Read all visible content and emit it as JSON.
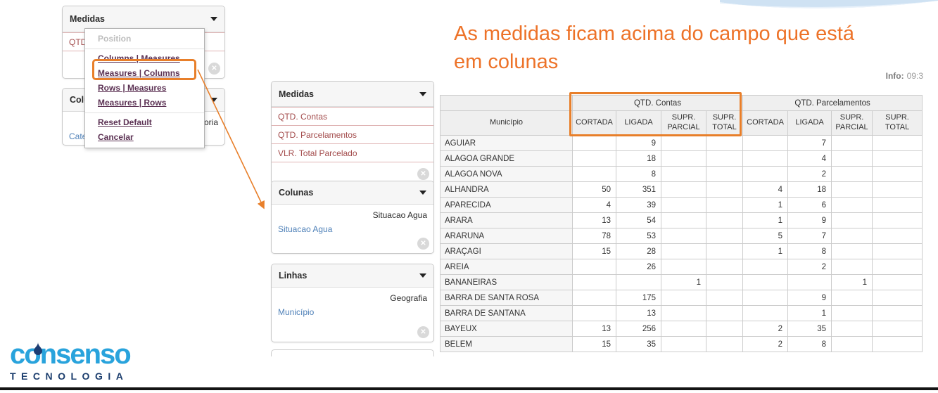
{
  "colors": {
    "accent_orange": "#e87f2a",
    "measure_red": "#a34c4c",
    "field_blue": "#4f81b8",
    "logo_blue": "#29a3dc",
    "logo_navy": "#1c3e6e"
  },
  "heading": {
    "lines": [
      "As medidas ficam acima do campo que está",
      "em colunas"
    ]
  },
  "info": {
    "label": "Info:",
    "value": "09:3"
  },
  "context_menu": {
    "items": [
      {
        "label": "Position",
        "disabled": true
      },
      {
        "label": "Columns | Measures",
        "separator_before": true
      },
      {
        "label": "Measures | Columns",
        "highlighted": true
      },
      {
        "label": "Rows | Measures"
      },
      {
        "label": "Measures | Rows"
      },
      {
        "label": "Reset Default",
        "separator_before": true
      },
      {
        "label": "Cancelar"
      }
    ]
  },
  "back_panels": {
    "medidas": {
      "title": "Medidas",
      "items": [
        "QTD. Contas"
      ]
    },
    "colunas": {
      "title": "Colunas",
      "group": "Categoria",
      "field": "Categoria"
    }
  },
  "panels": {
    "medidas": {
      "title": "Medidas",
      "items": [
        "QTD. Contas",
        "QTD. Parcelamentos",
        "VLR. Total Parcelado"
      ]
    },
    "colunas": {
      "title": "Colunas",
      "group": "Situacao Agua",
      "field": "Situacao Agua"
    },
    "linhas": {
      "title": "Linhas",
      "group": "Geografia",
      "field": "Município"
    }
  },
  "logo": {
    "name": "consenso",
    "subtitle": "TECNOLOGIA"
  },
  "chart_data": {
    "type": "table",
    "row_header": "Município",
    "groups": [
      {
        "label": "QTD. Contas",
        "span": 4
      },
      {
        "label": "QTD. Parcelamentos",
        "span": 4
      }
    ],
    "sub_headers": [
      "CORTADA",
      "LIGADA",
      "SUPR. PARCIAL",
      "SUPR. TOTAL",
      "CORTADA",
      "LIGADA",
      "SUPR. PARCIAL",
      "SUPR. TOTAL"
    ],
    "rows": [
      {
        "name": "AGUIAR",
        "values": [
          "",
          "9",
          "",
          "",
          "",
          "7",
          "",
          ""
        ]
      },
      {
        "name": "ALAGOA GRANDE",
        "values": [
          "",
          "18",
          "",
          "",
          "",
          "4",
          "",
          ""
        ]
      },
      {
        "name": "ALAGOA NOVA",
        "values": [
          "",
          "8",
          "",
          "",
          "",
          "2",
          "",
          ""
        ]
      },
      {
        "name": "ALHANDRA",
        "values": [
          "50",
          "351",
          "",
          "",
          "4",
          "18",
          "",
          ""
        ]
      },
      {
        "name": "APARECIDA",
        "values": [
          "4",
          "39",
          "",
          "",
          "1",
          "6",
          "",
          ""
        ]
      },
      {
        "name": "ARARA",
        "values": [
          "13",
          "54",
          "",
          "",
          "1",
          "9",
          "",
          ""
        ]
      },
      {
        "name": "ARARUNA",
        "values": [
          "78",
          "53",
          "",
          "",
          "5",
          "7",
          "",
          ""
        ]
      },
      {
        "name": "ARAÇAGI",
        "values": [
          "15",
          "28",
          "",
          "",
          "1",
          "8",
          "",
          ""
        ]
      },
      {
        "name": "AREIA",
        "values": [
          "",
          "26",
          "",
          "",
          "",
          "2",
          "",
          ""
        ]
      },
      {
        "name": "BANANEIRAS",
        "values": [
          "",
          "",
          "1",
          "",
          "",
          "",
          "1",
          ""
        ]
      },
      {
        "name": "BARRA DE SANTA ROSA",
        "values": [
          "",
          "175",
          "",
          "",
          "",
          "9",
          "",
          ""
        ]
      },
      {
        "name": "BARRA DE SANTANA",
        "values": [
          "",
          "13",
          "",
          "",
          "",
          "1",
          "",
          ""
        ]
      },
      {
        "name": "BAYEUX",
        "values": [
          "13",
          "256",
          "",
          "",
          "2",
          "35",
          "",
          ""
        ]
      },
      {
        "name": "BELEM",
        "values": [
          "15",
          "35",
          "",
          "",
          "2",
          "8",
          "",
          ""
        ]
      }
    ]
  }
}
